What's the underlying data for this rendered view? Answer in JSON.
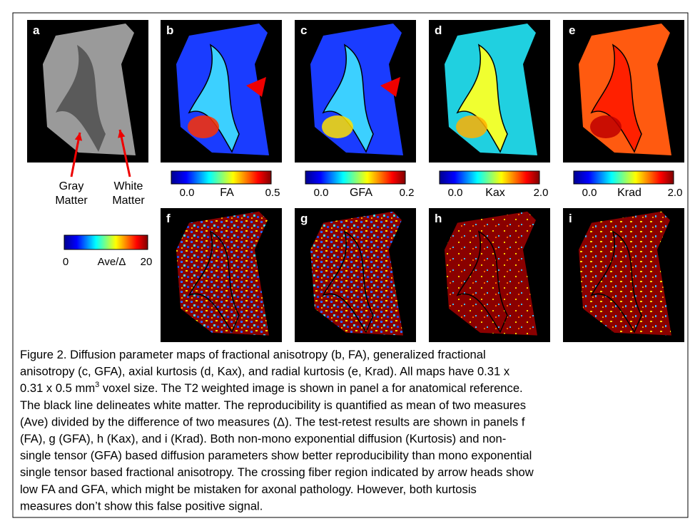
{
  "panels": [
    {
      "label": "a"
    },
    {
      "label": "b"
    },
    {
      "label": "c"
    },
    {
      "label": "d"
    },
    {
      "label": "e"
    },
    {
      "label": "f"
    },
    {
      "label": "g"
    },
    {
      "label": "h"
    },
    {
      "label": "i"
    }
  ],
  "annotations": {
    "gray_matter": [
      "Gray",
      "Matter"
    ],
    "white_matter": [
      "White",
      "Matter"
    ]
  },
  "colorbars": [
    {
      "min": "0.0",
      "name": "FA",
      "max": "0.5"
    },
    {
      "min": "0.0",
      "name": "GFA",
      "max": "0.2"
    },
    {
      "min": "0.0",
      "name": "Kax",
      "max": "2.0"
    },
    {
      "min": "0.0",
      "name": "Krad",
      "max": "2.0"
    },
    {
      "min": "0",
      "name": "Ave/Δ",
      "max": "20"
    }
  ],
  "caption": {
    "lines": [
      [
        "Figure 2. Diffusion parameter maps of fractional anisotropy (b, FA), generalized fractional"
      ],
      [
        "anisotropy (c, GFA), axial kurtosis (d, Kax), and radial kurtosis (e, Krad). All maps have 0.31 x"
      ],
      [
        "0.31 x 0.5 mm",
        "3",
        " voxel size. The T2 weighted image is shown in panel a for anatomical reference."
      ],
      [
        "The black line delineates white matter. The reproducibility is quantified as mean of two measures"
      ],
      [
        "(Ave) divided by the difference of two measures (Δ). The test-retest results are shown in panels f"
      ],
      [
        "(FA), g (GFA), h (Kax), and i (Krad). Both non-mono exponential diffusion (Kurtosis) and non-"
      ],
      [
        "single tensor (GFA) based diffusion parameters show better reproducibility than mono exponential"
      ],
      [
        "single tensor based fractional anisotropy. The crossing fiber region indicated by arrow heads show"
      ],
      [
        "low FA and GFA, which might be mistaken for axonal pathology. However, both kurtosis"
      ],
      [
        "measures don’t show this false positive signal."
      ]
    ]
  }
}
